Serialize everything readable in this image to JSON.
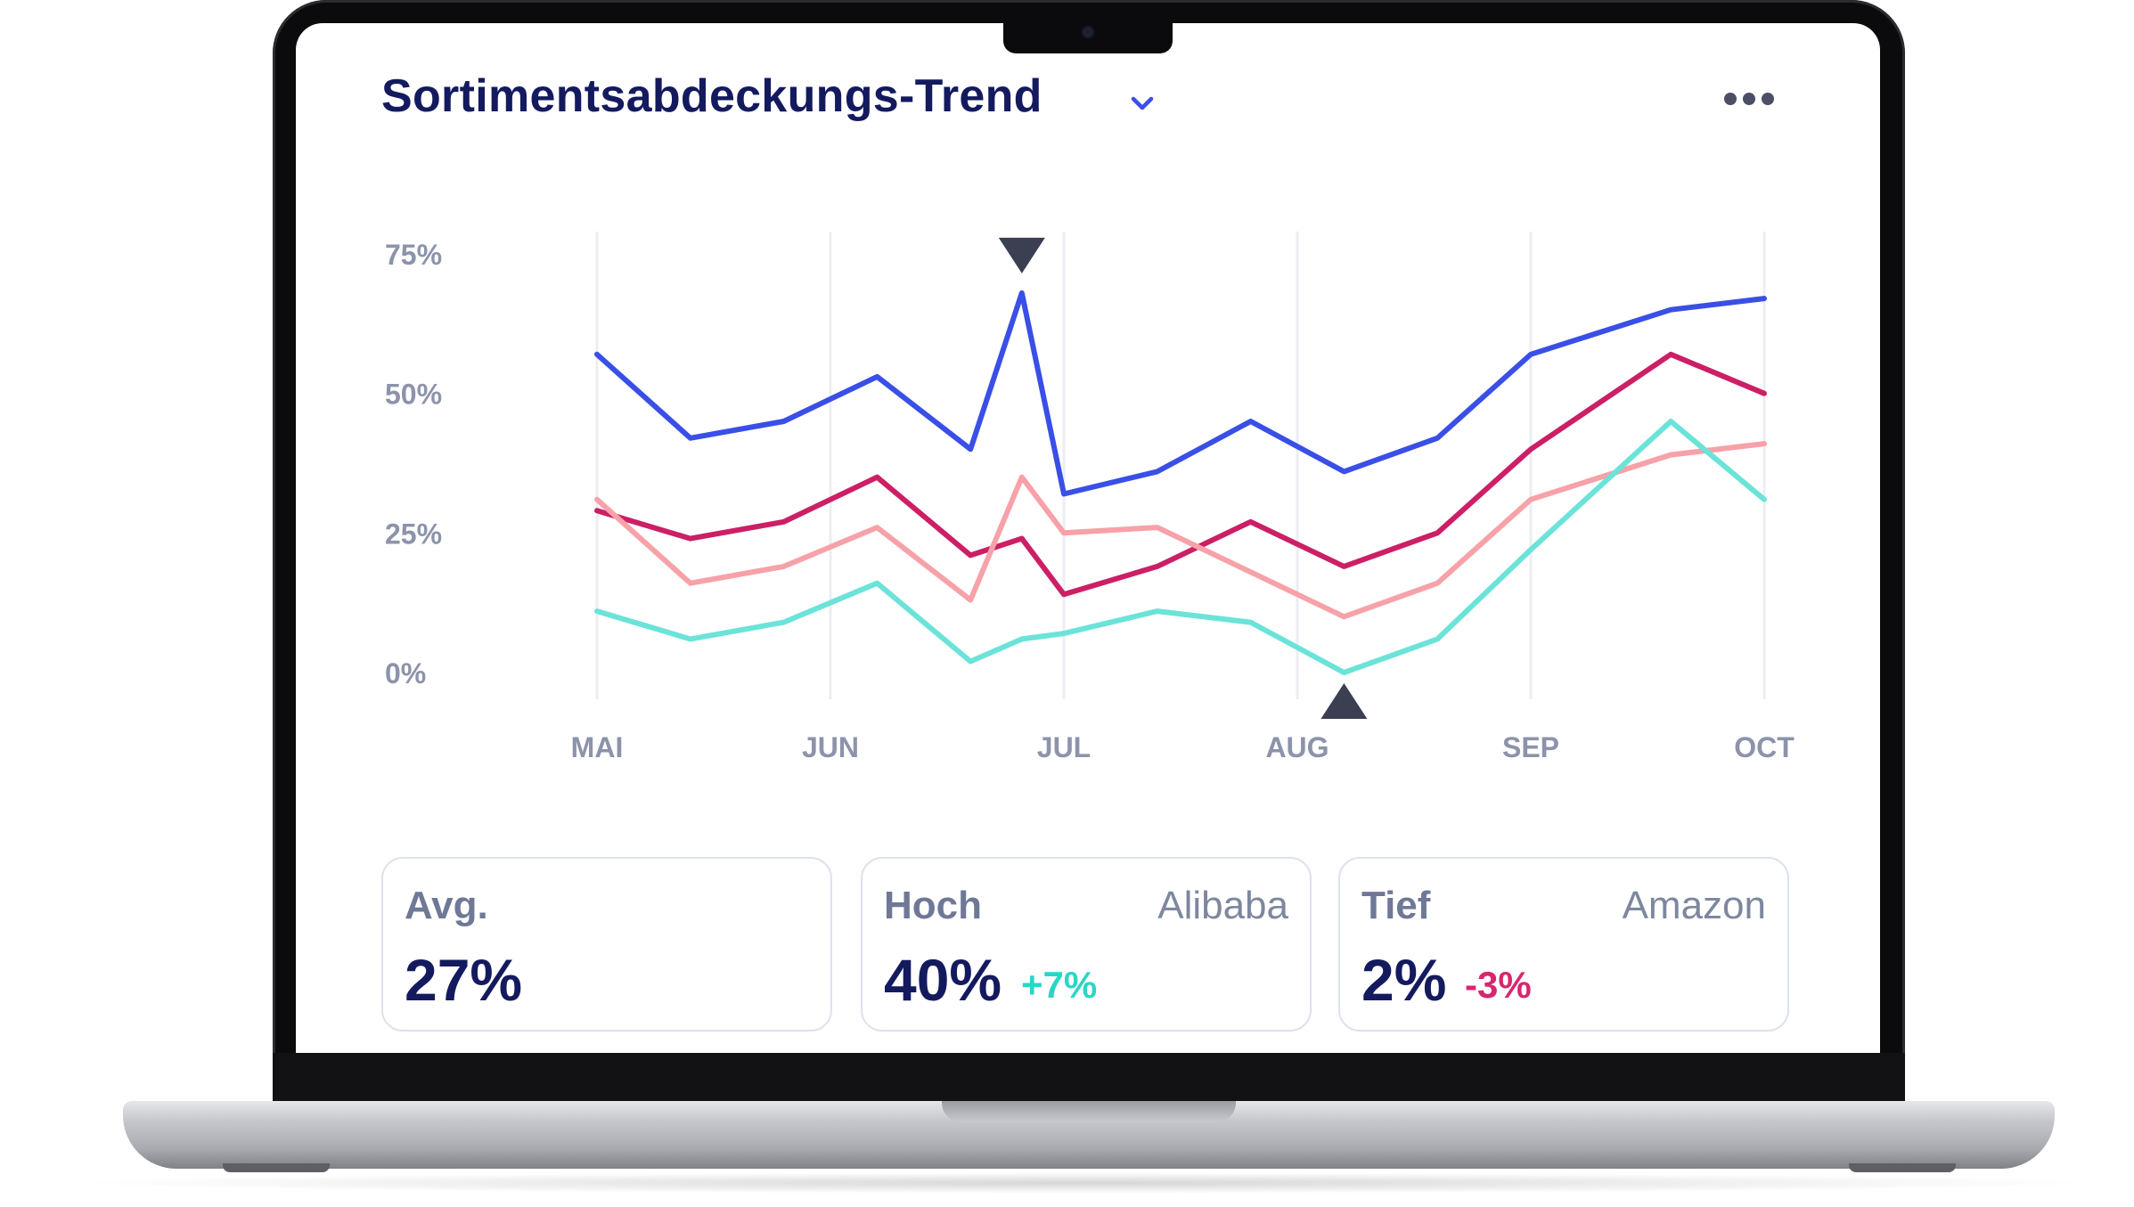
{
  "dashboard": {
    "title": "Sortimentsabdeckungs-Trend",
    "accent": "#3a4fe6"
  },
  "chart_data": {
    "type": "line",
    "categories": [
      "MAI",
      "JUN",
      "JUL",
      "AUG",
      "SEP",
      "OCT"
    ],
    "x": [
      0,
      0.4,
      0.8,
      1.2,
      1.6,
      1.82,
      2.0,
      2.4,
      2.8,
      3.2,
      3.6,
      4.0,
      4.6,
      5.0
    ],
    "y_ticks": [
      "75%",
      "50%",
      "25%",
      "0%"
    ],
    "ylim": [
      0,
      75
    ],
    "grid": "vertical",
    "series": [
      {
        "color": "#3a4fe6",
        "values": [
          57,
          42,
          45,
          53,
          40,
          68,
          32,
          36,
          45,
          36,
          42,
          57,
          65,
          67
        ]
      },
      {
        "color": "#cc1f65",
        "values": [
          29,
          24,
          27,
          35,
          21,
          24,
          14,
          19,
          27,
          19,
          25,
          40,
          57,
          50
        ]
      },
      {
        "color": "#f7a1a8",
        "values": [
          31,
          16,
          19,
          26,
          13,
          35,
          25,
          26,
          18,
          10,
          16,
          31,
          39,
          41
        ]
      },
      {
        "color": "#6be3d8",
        "values": [
          11,
          6,
          9,
          16,
          2,
          6,
          7,
          11,
          9,
          0,
          6,
          22,
          45,
          31
        ]
      }
    ],
    "markers": [
      {
        "kind": "max",
        "x": 1.82,
        "y": 68
      },
      {
        "kind": "min",
        "x": 3.2,
        "y": 0
      }
    ]
  },
  "stats": [
    {
      "label": "Avg.",
      "source": "",
      "value": "27%",
      "delta": "",
      "delta_color": ""
    },
    {
      "label": "Hoch",
      "source": "Alibaba",
      "value": "40%",
      "delta": "+7%",
      "delta_color": "#2ad6c6"
    },
    {
      "label": "Tief",
      "source": "Amazon",
      "value": "2%",
      "delta": "-3%",
      "delta_color": "#d8266e"
    }
  ]
}
